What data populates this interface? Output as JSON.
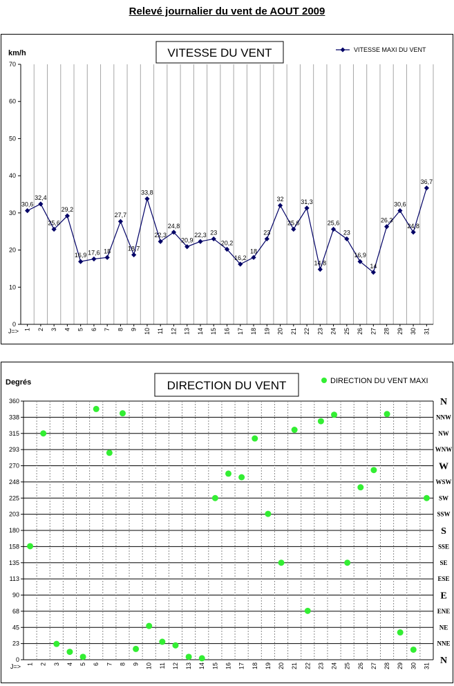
{
  "page": {
    "title": "Relevé journalier du vent de AOUT 2009"
  },
  "chart_data": [
    {
      "type": "line",
      "title": "VITESSE DU VENT",
      "ylabel": "km/h",
      "xlabel": "J=>",
      "ylim": [
        0,
        70
      ],
      "yticks": [
        "0",
        "10",
        "20",
        "30",
        "40",
        "50",
        "60",
        "70"
      ],
      "grid": "vertical",
      "legend": "top-right",
      "categories": [
        "1",
        "2",
        "3",
        "4",
        "5",
        "6",
        "7",
        "8",
        "9",
        "10",
        "11",
        "12",
        "13",
        "14",
        "15",
        "16",
        "17",
        "18",
        "19",
        "20",
        "21",
        "22",
        "23",
        "24",
        "25",
        "26",
        "27",
        "28",
        "29",
        "30",
        "31"
      ],
      "series": [
        {
          "name": "VITESSE MAXI DU VENT",
          "color": "#000066",
          "values": [
            30.6,
            32.4,
            25.6,
            29.2,
            16.9,
            17.6,
            18,
            27.7,
            18.7,
            33.8,
            22.3,
            24.8,
            20.9,
            22.3,
            23,
            20.2,
            16.2,
            18,
            23,
            32,
            25.6,
            31.3,
            14.8,
            25.6,
            23,
            16.9,
            14,
            26.3,
            30.6,
            24.8,
            36.7
          ],
          "labels": [
            "30,6",
            "32,4",
            "25,6",
            "29,2",
            "16,9",
            "17,6",
            "18",
            "27,7",
            "18,7",
            "33,8",
            "22,3",
            "24,8",
            "20,9",
            "22,3",
            "23",
            "20,2",
            "16,2",
            "18",
            "23",
            "32",
            "25,6",
            "31,3",
            "14,8",
            "25,6",
            "23",
            "16,9",
            "14",
            "26,3",
            "30,6",
            "24,8",
            "36,7"
          ]
        }
      ]
    },
    {
      "type": "scatter",
      "title": "DIRECTION DU VENT",
      "ylabel": "Degrés",
      "xlabel": "J=>",
      "ylim": [
        0,
        360
      ],
      "yticks": [
        "0",
        "23",
        "45",
        "68",
        "90",
        "113",
        "135",
        "158",
        "180",
        "203",
        "225",
        "248",
        "270",
        "293",
        "315",
        "338",
        "360"
      ],
      "compass": [
        "N",
        "NNE",
        "NE",
        "ENE",
        "E",
        "ESE",
        "SE",
        "SSE",
        "S",
        "SSW",
        "SW",
        "WSW",
        "W",
        "WNW",
        "NW",
        "NNW",
        "N"
      ],
      "grid": "horizontal",
      "legend": "top-right",
      "categories": [
        "1",
        "2",
        "3",
        "4",
        "5",
        "6",
        "7",
        "8",
        "9",
        "10",
        "11",
        "12",
        "13",
        "14",
        "15",
        "16",
        "17",
        "18",
        "19",
        "20",
        "21",
        "22",
        "23",
        "24",
        "25",
        "26",
        "27",
        "28",
        "29",
        "30",
        "31"
      ],
      "series": [
        {
          "name": "DIRECTION DU VENT MAXI",
          "color": "#33ee33",
          "values": [
            158,
            315,
            22,
            11,
            4,
            349,
            288,
            343,
            15,
            47,
            25,
            20,
            4,
            2,
            225,
            259,
            254,
            308,
            203,
            135,
            320,
            68,
            332,
            341,
            135,
            240,
            264,
            342,
            38,
            14,
            225
          ]
        }
      ]
    }
  ]
}
